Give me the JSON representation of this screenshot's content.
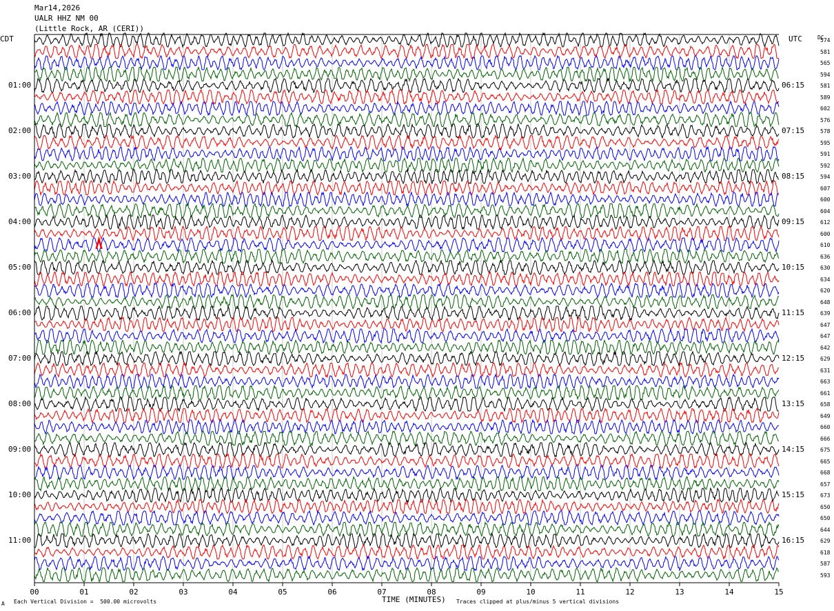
{
  "header": {
    "date": "Mar14,2026",
    "station": "UALR HHZ NM 00",
    "location": "(Little Rock, AR (CERI))"
  },
  "labels": {
    "left_tz": "CDT",
    "right_tz": "UTC",
    "dc": "DC",
    "xlabel": "TIME (MINUTES)",
    "scale_note": "Each Vertical Division =  500.00 microvolts",
    "clip_note": "Traces clipped at plus/minus 5 vertical divisions",
    "corner_mark": "A"
  },
  "colors": {
    "trace_cycle": [
      "#000000",
      "#ff0000",
      "#0000ff",
      "#006400"
    ],
    "grid": "#c8c8c8",
    "event_marker": "#ff0000"
  },
  "chart_data": {
    "type": "line",
    "chart_kind": "helicorder",
    "xlabel": "TIME (MINUTES)",
    "xlim": [
      0,
      15
    ],
    "x_ticks": [
      "00",
      "01",
      "02",
      "03",
      "04",
      "05",
      "06",
      "07",
      "08",
      "09",
      "10",
      "11",
      "12",
      "13",
      "14",
      "15"
    ],
    "rows_per_hour": 4,
    "row_count": 48,
    "left_hour_labels": [
      "01:00",
      "02:00",
      "03:00",
      "04:00",
      "05:00",
      "06:00",
      "07:00",
      "08:00",
      "09:00",
      "10:00",
      "11:00"
    ],
    "right_hour_labels": [
      "06:15",
      "07:15",
      "08:15",
      "09:15",
      "10:15",
      "11:15",
      "12:15",
      "13:15",
      "14:15",
      "15:15",
      "16:15"
    ],
    "dc_offsets": [
      574,
      581,
      565,
      594,
      581,
      589,
      602,
      576,
      578,
      595,
      591,
      592,
      594,
      607,
      600,
      604,
      612,
      600,
      610,
      636,
      630,
      634,
      620,
      648,
      639,
      647,
      647,
      642,
      629,
      631,
      663,
      661,
      658,
      649,
      660,
      666,
      675,
      665,
      668,
      657,
      673,
      650,
      650,
      644,
      629,
      618,
      587,
      593
    ],
    "event_marker": {
      "row": 18,
      "minute": 1.3
    }
  }
}
